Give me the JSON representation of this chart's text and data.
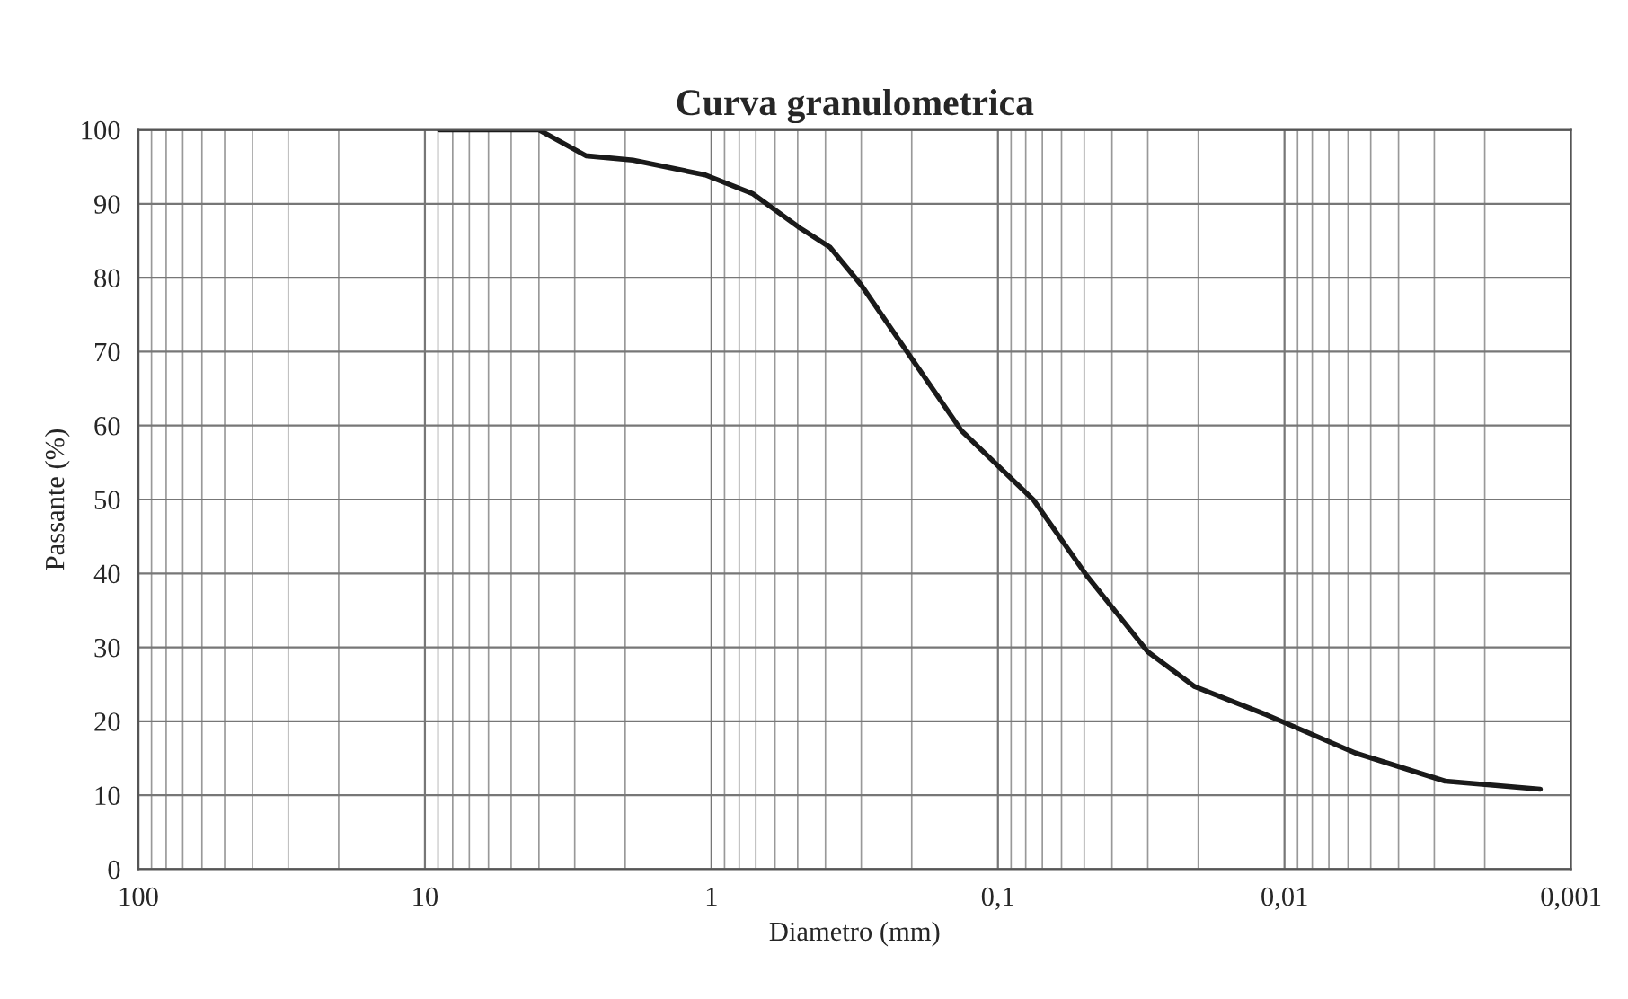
{
  "chart_data": {
    "type": "line",
    "title": "Curva granulometrica",
    "xlabel": "Diametro (mm)",
    "ylabel": "Passante (%)",
    "x": [
      8.9,
      4.0,
      2.74,
      1.88,
      1.05,
      0.72,
      0.49,
      0.385,
      0.3,
      0.197,
      0.134,
      0.075,
      0.049,
      0.03,
      0.0206,
      0.0116,
      0.00565,
      0.00275,
      0.00128
    ],
    "series": [
      {
        "color": "#1a1a1a",
        "values": [
          100,
          100,
          96.5,
          95.9,
          93.9,
          91.4,
          86.7,
          84.1,
          79,
          68.7,
          59.3,
          49.9,
          39.7,
          29.4,
          24.7,
          20.9,
          15.7,
          11.9,
          10.8
        ]
      }
    ],
    "log": "x",
    "xlim": [
      100,
      0.001
    ],
    "xticks": [
      100,
      10,
      1,
      {
        "value": 0.1,
        "label": "0,1"
      },
      {
        "value": 0.01,
        "label": "0,01"
      },
      {
        "value": 0.001,
        "label": "0,001"
      }
    ],
    "ylim": [
      0,
      100
    ],
    "yticks": [
      0,
      10,
      20,
      30,
      40,
      50,
      60,
      70,
      80,
      90,
      100
    ],
    "grid": true,
    "marker": "none",
    "line_style": "solid"
  }
}
